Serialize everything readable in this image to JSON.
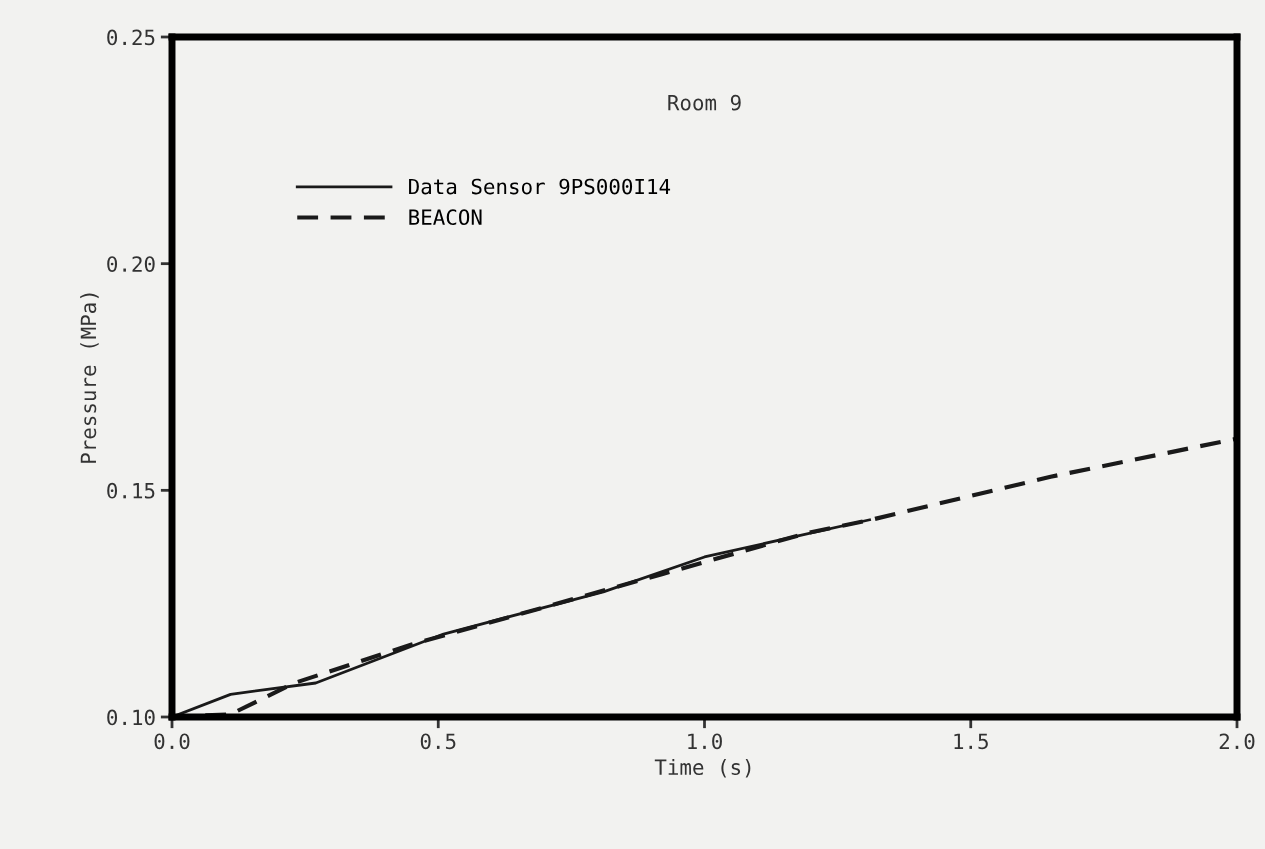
{
  "chart_data": {
    "type": "line",
    "title": "Room 9",
    "xlabel": "Time (s)",
    "ylabel": "Pressure (MPa)",
    "xlim": [
      0.0,
      2.0
    ],
    "xticks": [
      {
        "value": 0,
        "label": "0.0"
      },
      0.5,
      {
        "value": 1,
        "label": "1.0"
      },
      1.5,
      {
        "value": 2,
        "label": "2.0"
      }
    ],
    "ylim": [
      0.1,
      0.25
    ],
    "yticks": [
      {
        "value": 0.1,
        "label": "0.10"
      },
      {
        "value": 0.15,
        "label": "0.15"
      },
      {
        "value": 0.2,
        "label": "0.20"
      },
      {
        "value": 0.25,
        "label": "0.25"
      }
    ],
    "grid": false,
    "legend": "top left",
    "series": [
      {
        "name": "Data Sensor 9PS000I14",
        "color": "#1a1a1a",
        "line_style": "solid",
        "x": [
          0,
          0.11,
          0.27,
          0.51,
          0.81,
          1.0,
          1.31
        ],
        "values": [
          0.1,
          0.105,
          0.1075,
          0.1183,
          0.1276,
          0.1353,
          0.1435
        ]
      },
      {
        "name": "BEACON",
        "color": "#1a1a1a",
        "line_style": "dashed",
        "x": [
          0,
          0.11,
          0.23,
          0.45,
          0.92,
          1.19,
          1.32,
          1.65,
          2.0
        ],
        "values": [
          0.1,
          0.1006,
          0.1075,
          0.116,
          0.1315,
          0.1405,
          0.1437,
          0.153,
          0.1614
        ]
      }
    ]
  }
}
